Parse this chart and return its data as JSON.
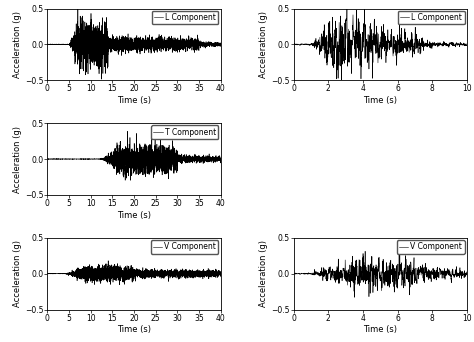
{
  "left_xlim": [
    0,
    40
  ],
  "right_xlim": [
    0,
    10
  ],
  "ylim": [
    -0.5,
    0.5
  ],
  "yticks": [
    -0.5,
    0,
    0.5
  ],
  "left_xticks": [
    0,
    5,
    10,
    15,
    20,
    25,
    30,
    35,
    40
  ],
  "right_xticks": [
    0,
    2,
    4,
    6,
    8,
    10
  ],
  "xlabel": "Time (s)",
  "ylabel": "Acceleration (g)",
  "left_labels": [
    "L Component",
    "T Component",
    "V Component"
  ],
  "right_labels": [
    "L Component",
    "V Component"
  ],
  "bg_color": "#ffffff",
  "line_color": "#000000",
  "line_width": 0.4,
  "legend_fontsize": 5.5,
  "tick_fontsize": 5.5,
  "label_fontsize": 6.0
}
